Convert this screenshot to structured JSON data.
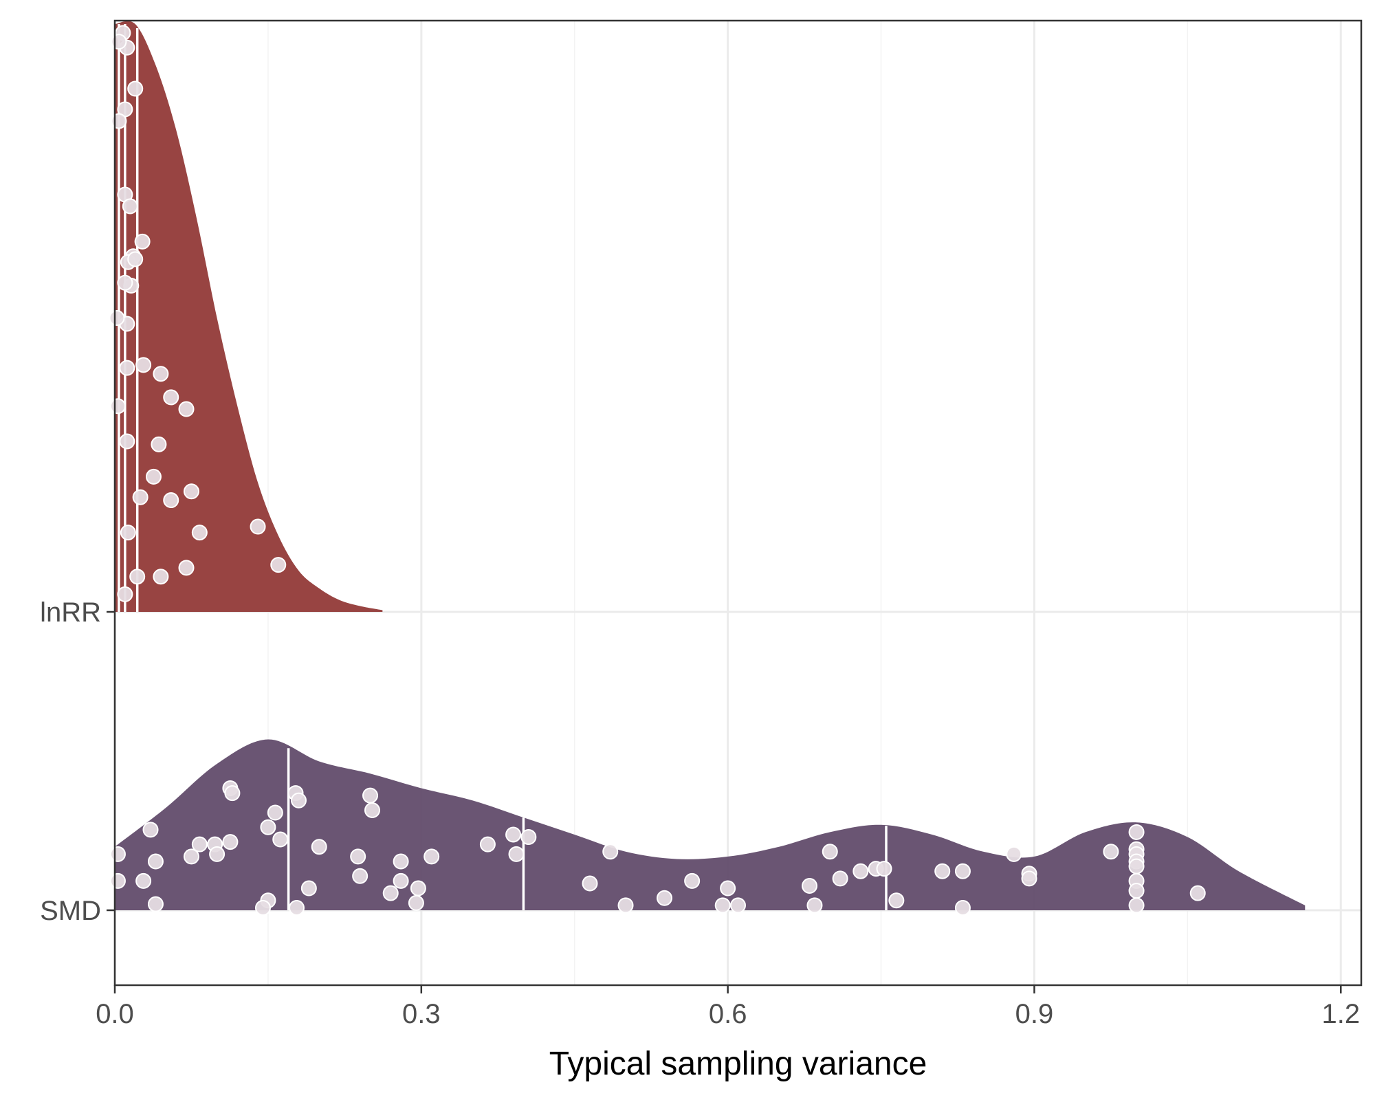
{
  "chart_data": {
    "type": "raincloud",
    "xlabel": "Typical sampling variance",
    "ylabel": "",
    "xlim": [
      0,
      1.22
    ],
    "x_ticks": [
      0.0,
      0.3,
      0.6,
      0.9,
      1.2
    ],
    "x_tick_labels": [
      "0.0",
      "0.3",
      "0.6",
      "0.9",
      "1.2"
    ],
    "grid": true,
    "legend": "none",
    "groups": [
      {
        "name": "lnRR",
        "color": "#923a38",
        "quantile_lines": [
          0.004,
          0.01,
          0.022
        ],
        "density": {
          "x": [
            0.0,
            0.02,
            0.04,
            0.06,
            0.08,
            0.1,
            0.12,
            0.14,
            0.16,
            0.18,
            0.2,
            0.22,
            0.24,
            0.262
          ],
          "y": [
            1.0,
            1.0,
            0.93,
            0.82,
            0.67,
            0.5,
            0.35,
            0.22,
            0.13,
            0.07,
            0.04,
            0.02,
            0.01,
            0.003
          ]
        },
        "points": [
          {
            "x": 0.008,
            "h": 0.985
          },
          {
            "x": 0.012,
            "h": 0.96
          },
          {
            "x": 0.004,
            "h": 0.97
          },
          {
            "x": 0.02,
            "h": 0.89
          },
          {
            "x": 0.01,
            "h": 0.855
          },
          {
            "x": 0.004,
            "h": 0.835
          },
          {
            "x": 0.01,
            "h": 0.71
          },
          {
            "x": 0.015,
            "h": 0.69
          },
          {
            "x": 0.027,
            "h": 0.63
          },
          {
            "x": 0.018,
            "h": 0.605
          },
          {
            "x": 0.013,
            "h": 0.595
          },
          {
            "x": 0.02,
            "h": 0.6
          },
          {
            "x": 0.016,
            "h": 0.555
          },
          {
            "x": 0.01,
            "h": 0.56
          },
          {
            "x": 0.012,
            "h": 0.49
          },
          {
            "x": 0.028,
            "h": 0.42
          },
          {
            "x": 0.012,
            "h": 0.415
          },
          {
            "x": 0.045,
            "h": 0.405
          },
          {
            "x": 0.055,
            "h": 0.365
          },
          {
            "x": 0.07,
            "h": 0.345
          },
          {
            "x": 0.012,
            "h": 0.29
          },
          {
            "x": 0.043,
            "h": 0.285
          },
          {
            "x": 0.038,
            "h": 0.23
          },
          {
            "x": 0.075,
            "h": 0.205
          },
          {
            "x": 0.025,
            "h": 0.195
          },
          {
            "x": 0.055,
            "h": 0.19
          },
          {
            "x": 0.083,
            "h": 0.135
          },
          {
            "x": 0.14,
            "h": 0.145
          },
          {
            "x": 0.013,
            "h": 0.135
          },
          {
            "x": 0.16,
            "h": 0.08
          },
          {
            "x": 0.07,
            "h": 0.075
          },
          {
            "x": 0.045,
            "h": 0.06
          },
          {
            "x": 0.022,
            "h": 0.06
          },
          {
            "x": 0.01,
            "h": 0.03
          },
          {
            "x": 0.002,
            "h": 0.5
          },
          {
            "x": 0.003,
            "h": 0.35
          }
        ]
      },
      {
        "name": "SMD",
        "color": "#624c6b",
        "quantile_lines": [
          0.17,
          0.4,
          0.755
        ],
        "density": {
          "x": [
            0.0,
            0.05,
            0.1,
            0.15,
            0.2,
            0.25,
            0.3,
            0.35,
            0.4,
            0.45,
            0.5,
            0.55,
            0.6,
            0.65,
            0.7,
            0.75,
            0.8,
            0.85,
            0.9,
            0.95,
            1.0,
            1.05,
            1.1,
            1.165
          ],
          "y": [
            0.26,
            0.42,
            0.6,
            0.7,
            0.61,
            0.56,
            0.5,
            0.45,
            0.38,
            0.31,
            0.24,
            0.21,
            0.22,
            0.26,
            0.32,
            0.35,
            0.31,
            0.24,
            0.22,
            0.32,
            0.36,
            0.3,
            0.16,
            0.02
          ]
        },
        "points": [
          {
            "x": 0.113,
            "h": 0.5
          },
          {
            "x": 0.115,
            "h": 0.48
          },
          {
            "x": 0.177,
            "h": 0.48
          },
          {
            "x": 0.18,
            "h": 0.45
          },
          {
            "x": 0.25,
            "h": 0.47
          },
          {
            "x": 0.252,
            "h": 0.41
          },
          {
            "x": 0.157,
            "h": 0.4
          },
          {
            "x": 0.15,
            "h": 0.34
          },
          {
            "x": 0.035,
            "h": 0.33
          },
          {
            "x": 0.162,
            "h": 0.29
          },
          {
            "x": 0.083,
            "h": 0.27
          },
          {
            "x": 0.098,
            "h": 0.27
          },
          {
            "x": 0.113,
            "h": 0.28
          },
          {
            "x": 0.075,
            "h": 0.22
          },
          {
            "x": 0.1,
            "h": 0.23
          },
          {
            "x": 0.2,
            "h": 0.26
          },
          {
            "x": 0.238,
            "h": 0.22
          },
          {
            "x": 0.28,
            "h": 0.2
          },
          {
            "x": 0.31,
            "h": 0.22
          },
          {
            "x": 0.365,
            "h": 0.27
          },
          {
            "x": 0.39,
            "h": 0.31
          },
          {
            "x": 0.405,
            "h": 0.3
          },
          {
            "x": 0.393,
            "h": 0.23
          },
          {
            "x": 0.003,
            "h": 0.23
          },
          {
            "x": 0.04,
            "h": 0.2
          },
          {
            "x": 0.003,
            "h": 0.12
          },
          {
            "x": 0.028,
            "h": 0.12
          },
          {
            "x": 0.24,
            "h": 0.14
          },
          {
            "x": 0.28,
            "h": 0.12
          },
          {
            "x": 0.27,
            "h": 0.07
          },
          {
            "x": 0.295,
            "h": 0.03
          },
          {
            "x": 0.297,
            "h": 0.09
          },
          {
            "x": 0.19,
            "h": 0.09
          },
          {
            "x": 0.15,
            "h": 0.04
          },
          {
            "x": 0.145,
            "h": 0.01
          },
          {
            "x": 0.178,
            "h": 0.01
          },
          {
            "x": 0.04,
            "h": 0.025
          },
          {
            "x": 0.485,
            "h": 0.24
          },
          {
            "x": 0.465,
            "h": 0.11
          },
          {
            "x": 0.5,
            "h": 0.02
          },
          {
            "x": 0.538,
            "h": 0.05
          },
          {
            "x": 0.565,
            "h": 0.12
          },
          {
            "x": 0.6,
            "h": 0.09
          },
          {
            "x": 0.595,
            "h": 0.02
          },
          {
            "x": 0.61,
            "h": 0.02
          },
          {
            "x": 0.68,
            "h": 0.1
          },
          {
            "x": 0.685,
            "h": 0.02
          },
          {
            "x": 0.7,
            "h": 0.24
          },
          {
            "x": 0.71,
            "h": 0.13
          },
          {
            "x": 0.73,
            "h": 0.16
          },
          {
            "x": 0.745,
            "h": 0.17
          },
          {
            "x": 0.753,
            "h": 0.17
          },
          {
            "x": 0.765,
            "h": 0.04
          },
          {
            "x": 0.81,
            "h": 0.16
          },
          {
            "x": 0.83,
            "h": 0.16
          },
          {
            "x": 0.83,
            "h": 0.01
          },
          {
            "x": 0.88,
            "h": 0.23
          },
          {
            "x": 0.895,
            "h": 0.15
          },
          {
            "x": 0.895,
            "h": 0.13
          },
          {
            "x": 0.975,
            "h": 0.24
          },
          {
            "x": 1.0,
            "h": 0.32
          },
          {
            "x": 1.0,
            "h": 0.25
          },
          {
            "x": 1.0,
            "h": 0.23
          },
          {
            "x": 1.0,
            "h": 0.2
          },
          {
            "x": 1.0,
            "h": 0.18
          },
          {
            "x": 1.0,
            "h": 0.12
          },
          {
            "x": 1.0,
            "h": 0.08
          },
          {
            "x": 1.0,
            "h": 0.02
          },
          {
            "x": 1.06,
            "h": 0.07
          }
        ]
      }
    ]
  }
}
